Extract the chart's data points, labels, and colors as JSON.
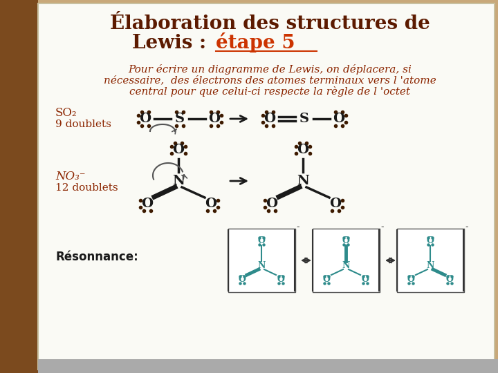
{
  "title_line1": "Élaboration des structures de",
  "title_line2": "Lewis : ",
  "title_highlight": "étape 5",
  "title_color": "#5C1A00",
  "highlight_color": "#CC3300",
  "body_text_line1": "Pour écrire un diagramme de Lewis, on déplacera, si",
  "body_text_line2": "nécessaire,  des électrons des atomes terminaux vers l 'atome",
  "body_text_line3": "central pour que celui-ci respecte la règle de l 'octet",
  "body_color": "#8B2500",
  "bg_outer": "#C8A87A",
  "bg_slide": "#FAFAF5",
  "label_so2_line1": "SO₂",
  "label_so2_line2": "9 doublets",
  "label_no3_line1": "NO₃⁻",
  "label_no3_line2": "12 doublets",
  "label_resonance": "Résonnance:",
  "dot_color": "#3D1A00",
  "bond_color": "#1A1A1A",
  "arrow_color": "#1A1A1A",
  "teal": "#2E8B8B"
}
